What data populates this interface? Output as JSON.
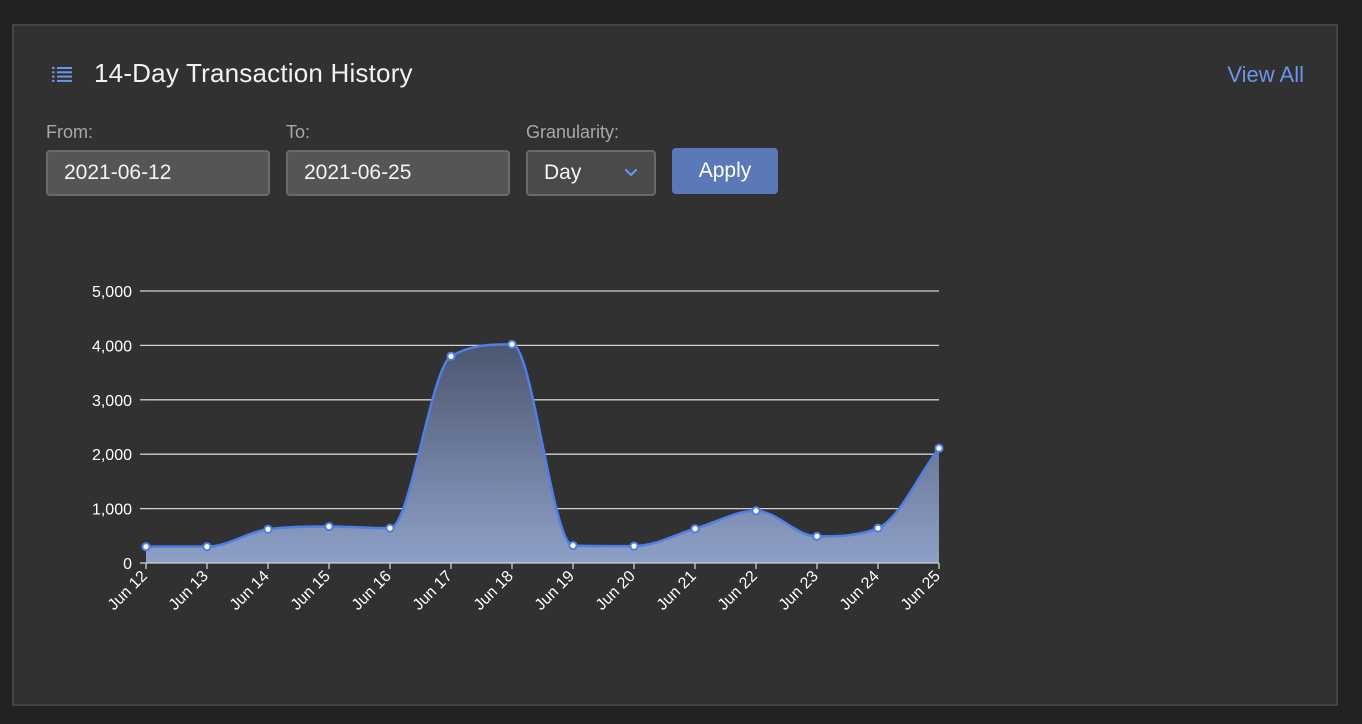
{
  "header": {
    "title": "14-Day Transaction History",
    "view_all": "View All",
    "icon": "list-icon"
  },
  "filters": {
    "from_label": "From:",
    "from_value": "2021-06-12",
    "to_label": "To:",
    "to_value": "2021-06-25",
    "granularity_label": "Granularity:",
    "granularity_value": "Day",
    "apply_label": "Apply"
  },
  "colors": {
    "accent": "#6a95e8",
    "line": "#4f7fe6",
    "button": "#5b79b8"
  },
  "chart_data": {
    "type": "area",
    "categories": [
      "Jun 12",
      "Jun 13",
      "Jun 14",
      "Jun 15",
      "Jun 16",
      "Jun 17",
      "Jun 18",
      "Jun 19",
      "Jun 20",
      "Jun 21",
      "Jun 22",
      "Jun 23",
      "Jun 24",
      "Jun 25"
    ],
    "values": [
      300,
      300,
      620,
      670,
      640,
      3800,
      4020,
      320,
      310,
      630,
      960,
      490,
      640,
      2110
    ],
    "ylim": [
      0,
      5000
    ],
    "yticks": [
      0,
      1000,
      2000,
      3000,
      4000,
      5000
    ],
    "ytick_labels": [
      "0",
      "1,000",
      "2,000",
      "3,000",
      "4,000",
      "5,000"
    ],
    "grid": true,
    "smooth": true
  }
}
